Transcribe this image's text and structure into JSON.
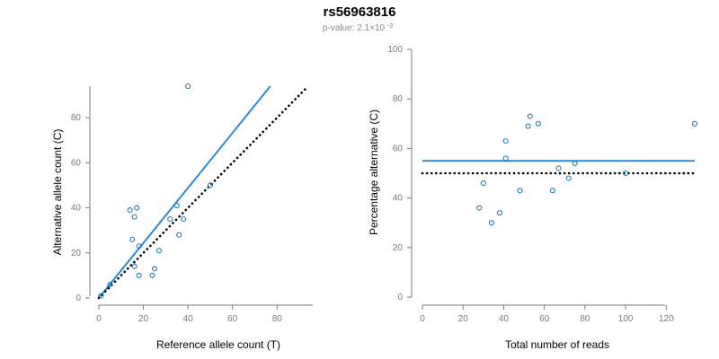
{
  "figure": {
    "title": "rs56963816",
    "subtitle": {
      "prefix": "p-value: 2.1×10",
      "exponent": "-3"
    },
    "colors": {
      "points": "#1f77b4",
      "fit_line": "#2b8ad8",
      "reference_line": "#000000",
      "axis": "#7a7a7a"
    }
  },
  "chart_data": [
    {
      "id": "left",
      "type": "scatter",
      "xlabel": "Reference allele count (T)",
      "ylabel": "Alternative allele count (C)",
      "xlim": [
        0,
        92
      ],
      "ylim": [
        0,
        94
      ],
      "xticks": [
        0,
        20,
        40,
        60,
        80
      ],
      "yticks": [
        0,
        20,
        40,
        60,
        80
      ],
      "grid": false,
      "points": [
        {
          "x": 1,
          "y": 1
        },
        {
          "x": 5,
          "y": 6
        },
        {
          "x": 40,
          "y": 94
        },
        {
          "x": 14,
          "y": 39
        },
        {
          "x": 16,
          "y": 36
        },
        {
          "x": 17,
          "y": 40
        },
        {
          "x": 15,
          "y": 26
        },
        {
          "x": 18,
          "y": 23
        },
        {
          "x": 16,
          "y": 14
        },
        {
          "x": 18,
          "y": 10
        },
        {
          "x": 24,
          "y": 10
        },
        {
          "x": 25,
          "y": 13
        },
        {
          "x": 27,
          "y": 21
        },
        {
          "x": 32,
          "y": 35
        },
        {
          "x": 35,
          "y": 41
        },
        {
          "x": 36,
          "y": 28
        },
        {
          "x": 38,
          "y": 35
        },
        {
          "x": 50,
          "y": 50
        }
      ],
      "lines": [
        {
          "role": "fit",
          "style": "solid",
          "color": "#2b8ad8",
          "points": [
            {
              "x": 0,
              "y": 0
            },
            {
              "x": 77,
              "y": 94
            }
          ]
        },
        {
          "role": "reference",
          "style": "dotted",
          "color": "#000000",
          "points": [
            {
              "x": 0,
              "y": 0
            },
            {
              "x": 93,
              "y": 93
            }
          ]
        }
      ]
    },
    {
      "id": "right",
      "type": "scatter",
      "xlabel": "Total number of reads",
      "ylabel": "Percentage alternative (C)",
      "xlim": [
        0,
        134
      ],
      "ylim": [
        0,
        100
      ],
      "xticks": [
        0,
        20,
        40,
        60,
        80,
        100,
        120
      ],
      "yticks": [
        0,
        20,
        40,
        60,
        80,
        100
      ],
      "grid": false,
      "points": [
        {
          "x": 28,
          "y": 36
        },
        {
          "x": 30,
          "y": 46
        },
        {
          "x": 34,
          "y": 30
        },
        {
          "x": 38,
          "y": 34
        },
        {
          "x": 41,
          "y": 63
        },
        {
          "x": 41,
          "y": 56
        },
        {
          "x": 48,
          "y": 43
        },
        {
          "x": 52,
          "y": 69
        },
        {
          "x": 53,
          "y": 73
        },
        {
          "x": 57,
          "y": 70
        },
        {
          "x": 64,
          "y": 43
        },
        {
          "x": 67,
          "y": 52
        },
        {
          "x": 72,
          "y": 48
        },
        {
          "x": 75,
          "y": 54
        },
        {
          "x": 100,
          "y": 50
        },
        {
          "x": 134,
          "y": 70
        }
      ],
      "lines": [
        {
          "role": "fit",
          "style": "solid",
          "color": "#2b8ad8",
          "points": [
            {
              "x": 0,
              "y": 55
            },
            {
              "x": 134,
              "y": 55
            }
          ]
        },
        {
          "role": "reference",
          "style": "dotted",
          "color": "#000000",
          "points": [
            {
              "x": 0,
              "y": 50
            },
            {
              "x": 134,
              "y": 50
            }
          ]
        }
      ]
    }
  ]
}
